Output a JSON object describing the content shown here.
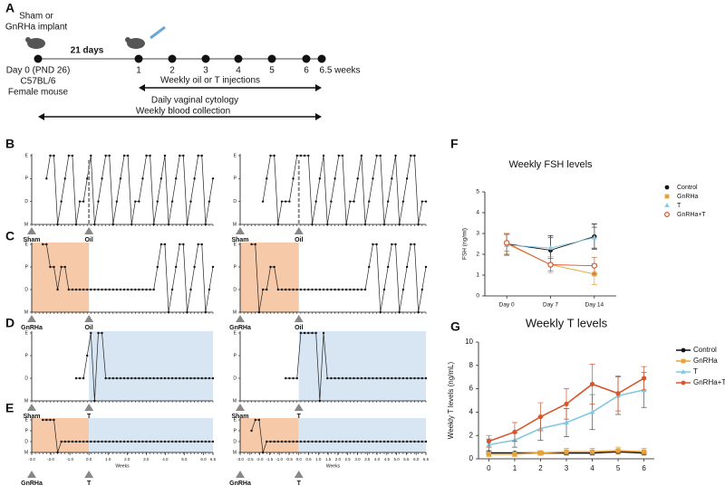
{
  "panels": [
    "A",
    "B",
    "C",
    "D",
    "E",
    "F",
    "G"
  ],
  "timeline": {
    "implant_lines": [
      "Sham or",
      "GnRHa implant"
    ],
    "interval": "21 days",
    "start_lines": [
      "Day 0 (PND 26)",
      "C57BL/6",
      "Female mouse"
    ],
    "weeks": [
      "1",
      "2",
      "3",
      "4",
      "5",
      "6",
      "6.5 weeks"
    ],
    "injections": "Weekly oil or T injections",
    "cytology": "Daily vaginal cytology",
    "blood": "Weekly blood collection"
  },
  "chart_data": [
    {
      "type": "line",
      "xlim": [
        -3,
        6.5
      ],
      "ylim": [
        0,
        3
      ],
      "yticks": [
        {
          "value": 0,
          "label": "M"
        },
        {
          "value": 1,
          "label": "D"
        },
        {
          "value": 2,
          "label": "P"
        },
        {
          "value": 3,
          "label": "E"
        }
      ],
      "values": [
        null,
        null,
        null,
        null,
        2,
        3,
        3,
        0,
        1,
        2,
        3,
        3,
        0,
        1,
        1,
        2,
        3,
        0,
        1,
        2,
        3,
        3,
        0,
        1,
        2,
        3,
        3,
        0,
        1,
        1,
        2,
        3,
        3,
        0,
        1,
        2,
        3,
        0,
        1,
        2,
        3,
        3,
        0,
        1,
        2,
        3,
        3,
        0,
        1,
        2
      ],
      "markers": [
        {
          "label": "Sham",
          "x": -3
        },
        {
          "label": "Oil",
          "x": 0,
          "line": true
        }
      ]
    },
    {
      "type": "line",
      "xlim": [
        -3,
        6.5
      ],
      "ylim": [
        0,
        3
      ],
      "yticks": [
        {
          "value": 0,
          "label": "M"
        },
        {
          "value": 1,
          "label": "D"
        },
        {
          "value": 2,
          "label": "P"
        },
        {
          "value": 3,
          "label": "E"
        }
      ],
      "values": [
        null,
        null,
        null,
        null,
        null,
        null,
        1,
        2,
        3,
        3,
        0,
        1,
        1,
        1,
        2,
        3,
        3,
        3,
        3,
        0,
        1,
        2,
        3,
        0,
        1,
        2,
        3,
        3,
        0,
        1,
        1,
        2,
        3,
        0,
        1,
        2,
        3,
        3,
        0,
        1,
        2,
        3,
        0,
        1,
        2,
        3,
        3,
        0,
        1,
        1
      ],
      "markers": [
        {
          "label": "Sham",
          "x": -3
        },
        {
          "label": "Oil",
          "x": 0,
          "line": true
        }
      ]
    },
    {
      "type": "line",
      "xlim": [
        -3,
        6.5
      ],
      "ylim": [
        0,
        3
      ],
      "yticks": [
        {
          "value": 0,
          "label": "M"
        },
        {
          "value": 1,
          "label": "D"
        },
        {
          "value": 2,
          "label": "P"
        },
        {
          "value": 3,
          "label": "E"
        }
      ],
      "values": [
        null,
        null,
        null,
        3,
        3,
        2,
        2,
        1,
        2,
        2,
        1,
        1,
        1,
        1,
        1,
        1,
        1,
        1,
        1,
        1,
        1,
        1,
        1,
        1,
        1,
        1,
        1,
        1,
        1,
        1,
        1,
        1,
        1,
        1,
        2,
        3,
        3,
        0,
        1,
        2,
        3,
        3,
        0,
        1,
        2,
        3,
        3,
        0,
        1,
        2
      ],
      "shades": [
        {
          "from": -3,
          "to": 0,
          "color": "#f6c9a9"
        }
      ],
      "markers": [
        {
          "label": "GnRHa",
          "x": -3
        },
        {
          "label": "Oil",
          "x": 0
        }
      ]
    },
    {
      "type": "line",
      "xlim": [
        -3,
        6.5
      ],
      "ylim": [
        0,
        3
      ],
      "yticks": [
        {
          "value": 0,
          "label": "M"
        },
        {
          "value": 1,
          "label": "D"
        },
        {
          "value": 2,
          "label": "P"
        },
        {
          "value": 3,
          "label": "E"
        }
      ],
      "values": [
        null,
        null,
        null,
        3,
        3,
        0,
        1,
        1,
        2,
        2,
        1,
        1,
        1,
        1,
        1,
        1,
        1,
        1,
        1,
        1,
        1,
        1,
        1,
        1,
        1,
        1,
        1,
        1,
        1,
        1,
        1,
        1,
        1,
        1,
        2,
        3,
        3,
        0,
        1,
        2,
        3,
        3,
        0,
        1,
        2,
        3,
        3,
        0,
        1,
        2
      ],
      "shades": [
        {
          "from": -3,
          "to": 0,
          "color": "#f6c9a9"
        }
      ],
      "markers": [
        {
          "label": "GnRHa",
          "x": -3
        },
        {
          "label": "Oil",
          "x": 0
        }
      ]
    },
    {
      "type": "line",
      "xlim": [
        -3,
        6.5
      ],
      "ylim": [
        0,
        3
      ],
      "yticks": [
        {
          "value": 0,
          "label": "M"
        },
        {
          "value": 1,
          "label": "D"
        },
        {
          "value": 2,
          "label": "P"
        },
        {
          "value": 3,
          "label": "E"
        }
      ],
      "values": [
        null,
        null,
        null,
        null,
        null,
        null,
        null,
        null,
        null,
        null,
        null,
        null,
        1,
        1,
        1,
        2,
        3,
        0,
        3,
        3,
        1,
        1,
        1,
        1,
        1,
        1,
        1,
        1,
        1,
        1,
        1,
        1,
        1,
        1,
        1,
        1,
        1,
        1,
        1,
        1,
        1,
        1,
        1,
        1,
        1,
        1,
        1,
        1,
        1,
        1
      ],
      "shades": [
        {
          "from": 0,
          "to": 6.5,
          "color": "#d8e6f4"
        }
      ],
      "markers": [
        {
          "label": "Sham",
          "x": -3
        },
        {
          "label": "T",
          "x": 0
        }
      ]
    },
    {
      "type": "line",
      "xlim": [
        -3,
        6.5
      ],
      "ylim": [
        0,
        3
      ],
      "yticks": [
        {
          "value": 0,
          "label": "M"
        },
        {
          "value": 1,
          "label": "D"
        },
        {
          "value": 2,
          "label": "P"
        },
        {
          "value": 3,
          "label": "E"
        }
      ],
      "values": [
        null,
        null,
        null,
        null,
        null,
        null,
        null,
        null,
        null,
        null,
        null,
        null,
        1,
        1,
        1,
        1,
        3,
        3,
        3,
        3,
        3,
        0,
        3,
        1,
        1,
        1,
        1,
        1,
        1,
        1,
        1,
        1,
        1,
        1,
        1,
        1,
        1,
        1,
        1,
        1,
        1,
        1,
        1,
        1,
        1,
        1,
        1,
        1,
        1,
        1
      ],
      "shades": [
        {
          "from": 0,
          "to": 6.5,
          "color": "#d8e6f4"
        }
      ],
      "markers": [
        {
          "label": "Sham",
          "x": -3
        },
        {
          "label": "T",
          "x": 0
        }
      ]
    },
    {
      "type": "line",
      "xlim": [
        -3,
        6.5
      ],
      "ylim": [
        0,
        3
      ],
      "xlabel": "Weeks",
      "yticks": [
        {
          "value": 0,
          "label": "M"
        },
        {
          "value": 1,
          "label": "D"
        },
        {
          "value": 2,
          "label": "P"
        },
        {
          "value": 3,
          "label": "E"
        }
      ],
      "xticks": [
        {
          "value": -3,
          "label": "-3.0"
        },
        {
          "value": -2,
          "label": "-2.0"
        },
        {
          "value": -1,
          "label": "-1.0"
        },
        {
          "value": 0,
          "label": "0.0"
        },
        {
          "value": 1,
          "label": "1.0"
        },
        {
          "value": 2,
          "label": "2.0"
        },
        {
          "value": 3,
          "label": "3.0"
        },
        {
          "value": 4,
          "label": "4.0"
        },
        {
          "value": 5,
          "label": "5.0"
        },
        {
          "value": 6,
          "label": "6.0"
        },
        6.5
      ],
      "values": [
        null,
        null,
        null,
        3,
        3,
        3,
        3,
        0,
        1,
        1,
        1,
        1,
        1,
        1,
        1,
        1,
        1,
        1,
        1,
        1,
        1,
        1,
        1,
        1,
        1,
        1,
        1,
        1,
        1,
        1,
        1,
        1,
        1,
        1,
        1,
        1,
        1,
        1,
        1,
        1,
        1,
        1,
        1,
        1,
        1,
        1,
        1,
        1,
        1,
        1
      ],
      "shades": [
        {
          "from": -3,
          "to": 0,
          "color": "#f6c9a9"
        },
        {
          "from": 0,
          "to": 6.5,
          "color": "#d8e6f4"
        }
      ],
      "markers": [
        {
          "label": "GnRHa",
          "x": -3
        },
        {
          "label": "T",
          "x": 0
        }
      ]
    },
    {
      "type": "line",
      "xlim": [
        -3,
        6.5
      ],
      "ylim": [
        0,
        3
      ],
      "xlabel": "Weeks",
      "yticks": [
        {
          "value": 0,
          "label": "M"
        },
        {
          "value": 1,
          "label": "D"
        },
        {
          "value": 2,
          "label": "P"
        },
        {
          "value": 3,
          "label": "E"
        }
      ],
      "xticks": [
        {
          "value": -3,
          "label": "-3.0"
        },
        {
          "value": -2.5,
          "label": "-2.5"
        },
        {
          "value": -2,
          "label": "-2.0"
        },
        {
          "value": -1.5,
          "label": "-1.5"
        },
        {
          "value": -1,
          "label": "-1.0"
        },
        {
          "value": -0.5,
          "label": "-0.5"
        },
        {
          "value": 0,
          "label": "0.0"
        },
        0.5,
        {
          "value": 1,
          "label": "1.0"
        },
        1.5,
        {
          "value": 2,
          "label": "2.0"
        },
        2.5,
        {
          "value": 3,
          "label": "3.0"
        },
        3.5,
        {
          "value": 4,
          "label": "4.0"
        },
        4.5,
        {
          "value": 5,
          "label": "5.0"
        },
        5.5,
        {
          "value": 6,
          "label": "6.0"
        },
        6.5
      ],
      "values": [
        null,
        null,
        null,
        2,
        3,
        3,
        0,
        1,
        1,
        1,
        1,
        1,
        1,
        1,
        1,
        1,
        1,
        1,
        1,
        1,
        1,
        1,
        1,
        1,
        1,
        1,
        1,
        1,
        1,
        1,
        1,
        1,
        1,
        1,
        1,
        1,
        1,
        1,
        1,
        1,
        1,
        1,
        1,
        1,
        1,
        1,
        1,
        1,
        1,
        1
      ],
      "shades": [
        {
          "from": -3,
          "to": 0,
          "color": "#f6c9a9"
        },
        {
          "from": 0,
          "to": 6.5,
          "color": "#d8e6f4"
        }
      ],
      "markers": [
        {
          "label": "GnRHa",
          "x": -3
        },
        {
          "label": "T",
          "x": 0
        }
      ]
    },
    {
      "type": "line",
      "title": "Weekly FSH levels",
      "ylabel": "FSH (ng/ml)",
      "categories": [
        "Day 0",
        "Day 7",
        "Day 14"
      ],
      "ylim": [
        0,
        5
      ],
      "yticks": [
        0,
        1,
        2,
        3,
        4,
        5
      ],
      "series": [
        {
          "name": "Control",
          "color": "#111111",
          "marker": "circle",
          "values": [
            2.5,
            2.2,
            2.85
          ],
          "errors": [
            0.5,
            0.7,
            0.6
          ]
        },
        {
          "name": "GnRHa",
          "color": "#e8a23a",
          "marker": "square",
          "values": [
            2.5,
            1.5,
            1.05
          ],
          "errors": [
            0.5,
            0.4,
            0.5
          ]
        },
        {
          "name": "T",
          "color": "#7fc7e3",
          "marker": "triangle",
          "values": [
            2.45,
            2.3,
            2.8
          ],
          "errors": [
            0.5,
            0.5,
            0.5
          ]
        },
        {
          "name": "GnRHa+T",
          "color": "#d9552b",
          "marker": "open-circle",
          "values": [
            2.55,
            1.5,
            1.45
          ],
          "errors": [
            0.4,
            0.3,
            0.4
          ]
        }
      ]
    },
    {
      "type": "line",
      "title": "Weekly T levels",
      "ylabel": "Weekly T levels (ng/mL)",
      "x": [
        0,
        1,
        2,
        3,
        4,
        5,
        6
      ],
      "xlim": [
        -0.4,
        6.4
      ],
      "xticks": [
        0,
        1,
        2,
        3,
        4,
        5,
        6
      ],
      "ylim": [
        0,
        10
      ],
      "yticks": [
        0,
        2,
        4,
        6,
        8,
        10
      ],
      "series": [
        {
          "name": "Control",
          "color": "#111111",
          "marker": "circle",
          "values": [
            0.5,
            0.5,
            0.5,
            0.5,
            0.5,
            0.6,
            0.5
          ],
          "errors": [
            0.1,
            0.1,
            0.1,
            0.1,
            0.1,
            0.1,
            0.1
          ]
        },
        {
          "name": "GnRHa",
          "color": "#e8a23a",
          "marker": "square",
          "values": [
            0.4,
            0.4,
            0.5,
            0.6,
            0.6,
            0.7,
            0.6
          ],
          "errors": [
            0.2,
            0.2,
            0.2,
            0.3,
            0.3,
            0.3,
            0.3
          ]
        },
        {
          "name": "T",
          "color": "#7fc7e3",
          "marker": "triangle",
          "values": [
            1.2,
            1.6,
            2.6,
            3.1,
            4.0,
            5.4,
            5.9
          ],
          "errors": [
            0.5,
            0.6,
            1.0,
            1.2,
            1.5,
            1.6,
            1.5
          ]
        },
        {
          "name": "GnRHa+T",
          "color": "#d9552b",
          "marker": "circle",
          "values": [
            1.5,
            2.3,
            3.6,
            4.7,
            6.4,
            5.6,
            6.9
          ],
          "errors": [
            0.5,
            0.8,
            1.2,
            1.3,
            1.7,
            1.5,
            1.0
          ]
        }
      ]
    }
  ]
}
